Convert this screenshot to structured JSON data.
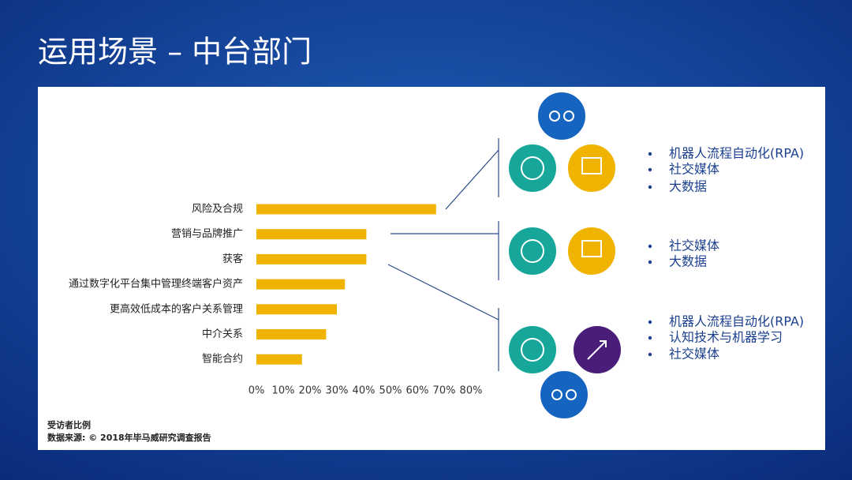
{
  "chart_data": {
    "type": "barh",
    "title": "运用场景 – 中台部门",
    "categories": [
      "风险及合规",
      "营销与品牌推广",
      "获客",
      "通过数字化平台集中管理终端客户资产",
      "更高效低成本的客户关系管理",
      "中介关系",
      "智能合约"
    ],
    "values": [
      67,
      41,
      41,
      33,
      30,
      26,
      17
    ],
    "color": "#f0b400",
    "xlim": [
      0,
      80
    ],
    "xticks": [
      {
        "value": 0,
        "label": "0%"
      },
      {
        "value": 10,
        "label": "10%"
      },
      {
        "value": 20,
        "label": "20%"
      },
      {
        "value": 30,
        "label": "30%"
      },
      {
        "value": 40,
        "label": "40%"
      },
      {
        "value": 50,
        "label": "50%"
      },
      {
        "value": 60,
        "label": "60%"
      },
      {
        "value": 70,
        "label": "70%"
      },
      {
        "value": 80,
        "label": "80%"
      }
    ],
    "grid": false
  },
  "groups": [
    [
      "机器人流程自动化(RPA)",
      "社交媒体",
      "大数据"
    ],
    [
      "社交媒体",
      "大数据"
    ],
    [
      "机器人流程自动化(RPA)",
      "认知技术与机器学习",
      "社交媒体"
    ]
  ],
  "notes": [
    "受访者比例",
    "数据来源: © 2018年毕马威研究调查报告"
  ]
}
